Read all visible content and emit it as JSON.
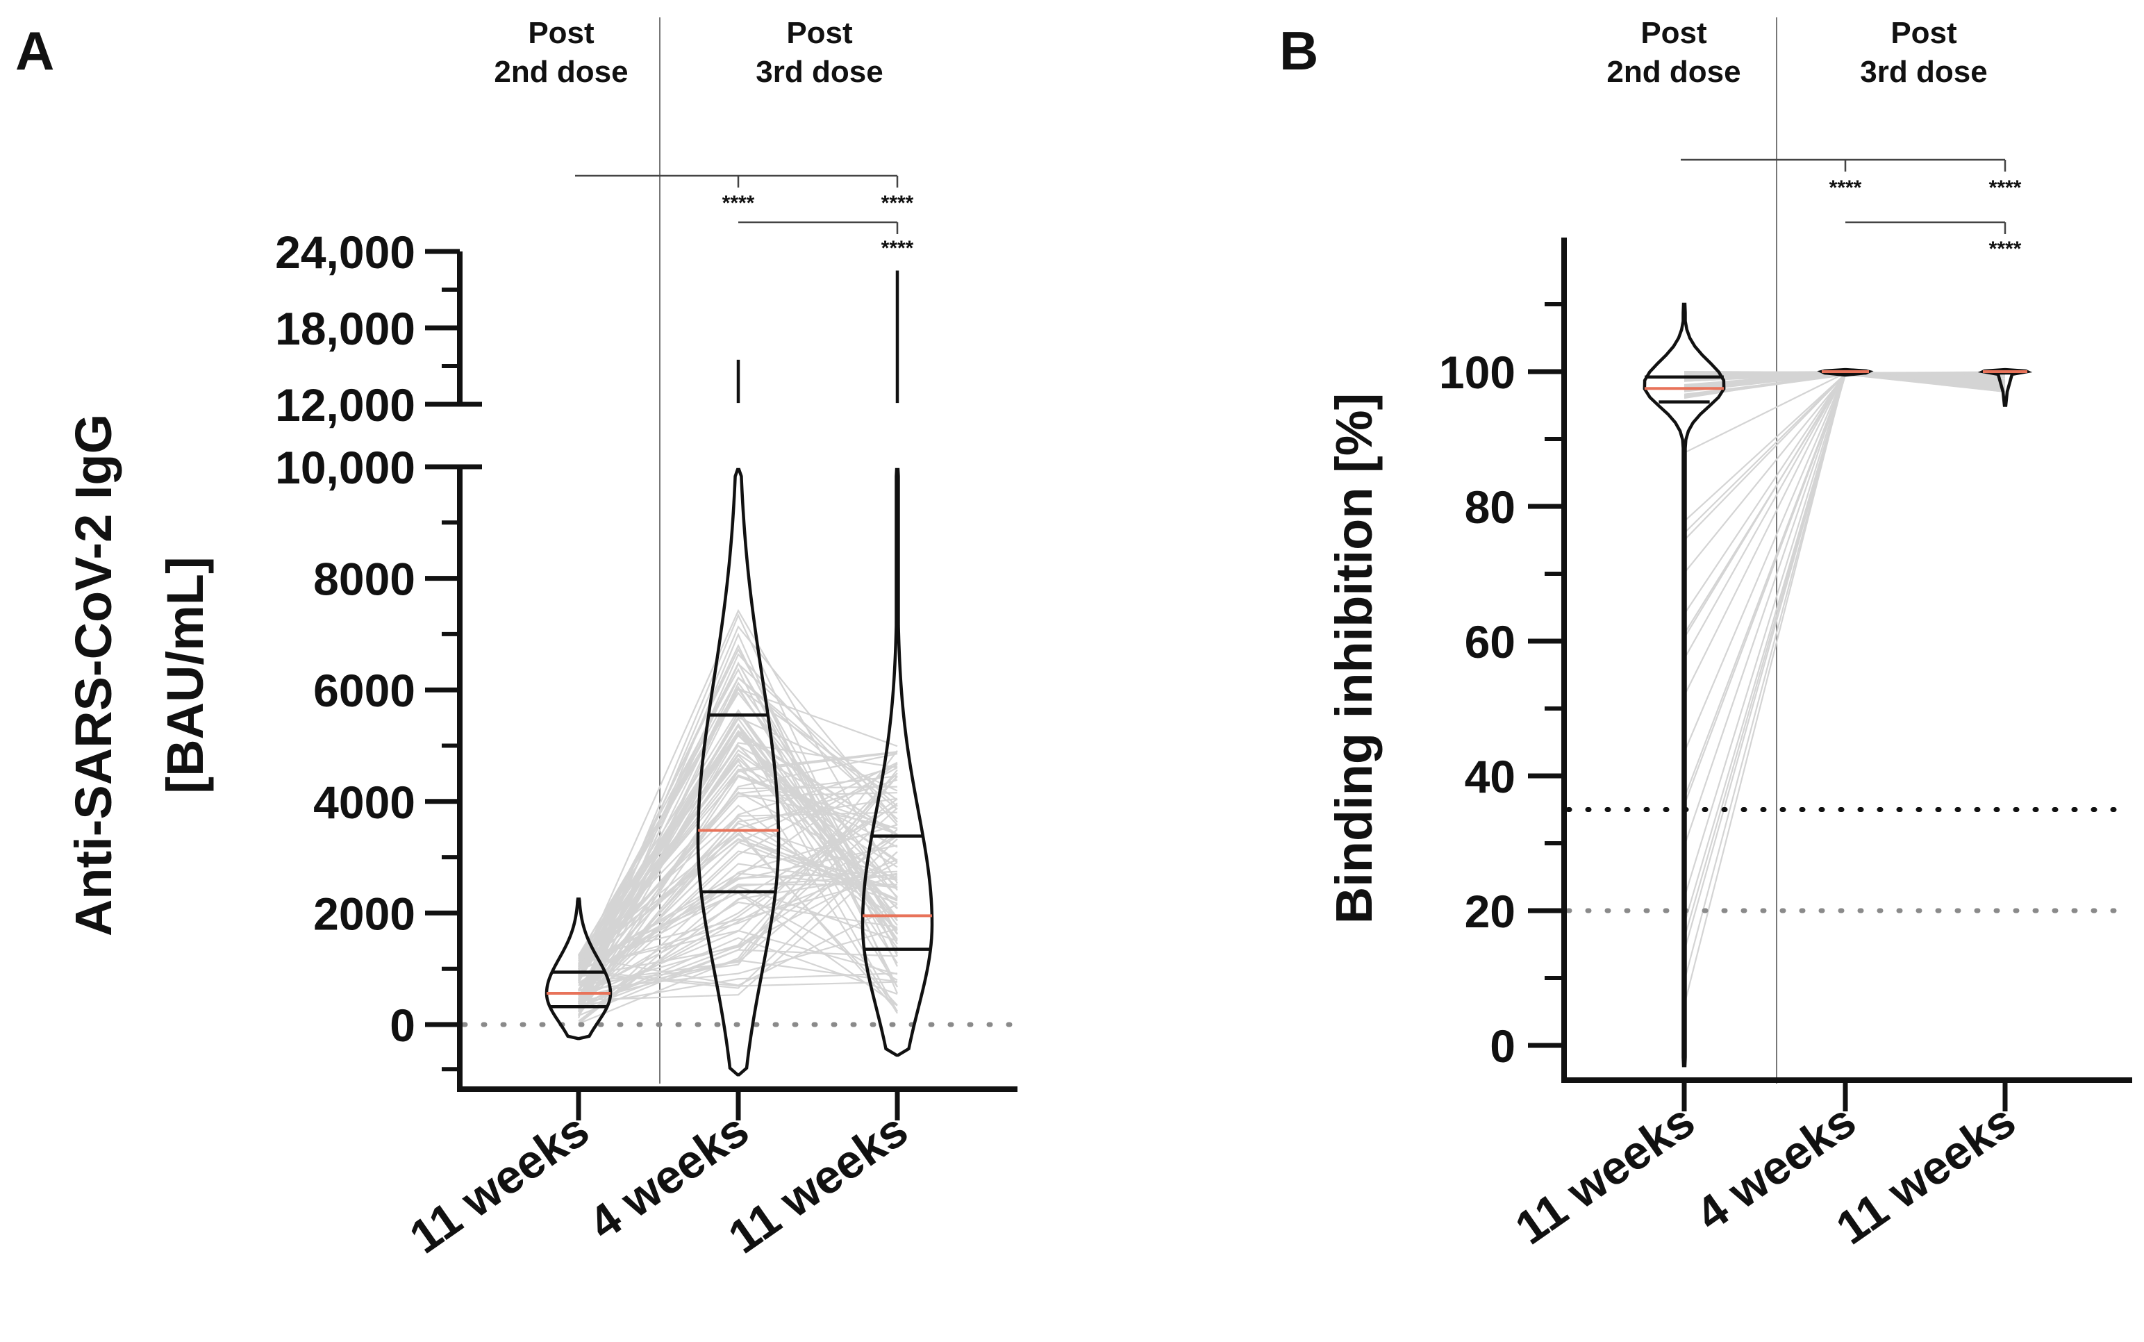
{
  "chart_data": [
    {
      "panel": "A",
      "type": "violin",
      "ylabel": "Anti-SARS-CoV-2 IgG",
      "ylabel2": "[BAU/mL]",
      "yscale": "segmented",
      "lower_range": [
        -800,
        10000
      ],
      "upper_range": [
        12000,
        24000
      ],
      "lower_ticks": [
        0,
        2000,
        4000,
        6000,
        8000,
        10000
      ],
      "lower_tick_labels": [
        "0",
        "2000",
        "4000",
        "6000",
        "8000",
        "10,000"
      ],
      "upper_ticks": [
        12000,
        18000,
        24000
      ],
      "upper_tick_labels": [
        "12,000",
        "18,000",
        "24,000"
      ],
      "phase_labels": [
        [
          "Post",
          "2nd dose"
        ],
        [
          "Post",
          "3rd dose"
        ]
      ],
      "categories": [
        "11 weeks",
        "4 weeks",
        "11 weeks"
      ],
      "medians": [
        560,
        3480,
        1950
      ],
      "q1": [
        320,
        2380,
        1350
      ],
      "q3": [
        940,
        5550,
        3380
      ],
      "min": [
        -250,
        -900,
        -550
      ],
      "max": [
        2250,
        15500,
        22500
      ],
      "threshold_lines": [
        {
          "value": 0,
          "color": "#8a8a8a"
        }
      ],
      "significance": [
        {
          "from": 0,
          "to": 1,
          "label": "****"
        },
        {
          "from": 0,
          "to": 2,
          "label": "****"
        },
        {
          "from": 1,
          "to": 2,
          "label": "****"
        }
      ]
    },
    {
      "panel": "B",
      "type": "violin",
      "ylabel": "Binding inhibition [%]",
      "ylim": [
        -5,
        120
      ],
      "yticks": [
        0,
        20,
        40,
        60,
        80,
        100
      ],
      "ytick_labels": [
        "0",
        "20",
        "40",
        "60",
        "80",
        "100"
      ],
      "phase_labels": [
        [
          "Post",
          "2nd dose"
        ],
        [
          "Post",
          "3rd dose"
        ]
      ],
      "categories": [
        "11 weeks",
        "4 weeks",
        "11 weeks"
      ],
      "medians": [
        97.5,
        100,
        100
      ],
      "q1": [
        95.5,
        99.8,
        99.8
      ],
      "q3": [
        99.2,
        100,
        100
      ],
      "min": [
        -3,
        99.6,
        95
      ],
      "max": [
        110,
        100.2,
        100.2
      ],
      "threshold_lines": [
        {
          "value": 35,
          "color": "#111111"
        },
        {
          "value": 20,
          "color": "#8a8a8a"
        }
      ],
      "significance": [
        {
          "from": 0,
          "to": 1,
          "label": "****"
        },
        {
          "from": 0,
          "to": 2,
          "label": "****"
        },
        {
          "from": 1,
          "to": 2,
          "label": "****"
        }
      ]
    }
  ],
  "colors": {
    "median": "#e8735a",
    "quartile": "#111111",
    "paired_lines": "#d4d4d4",
    "axis": "#111111"
  }
}
